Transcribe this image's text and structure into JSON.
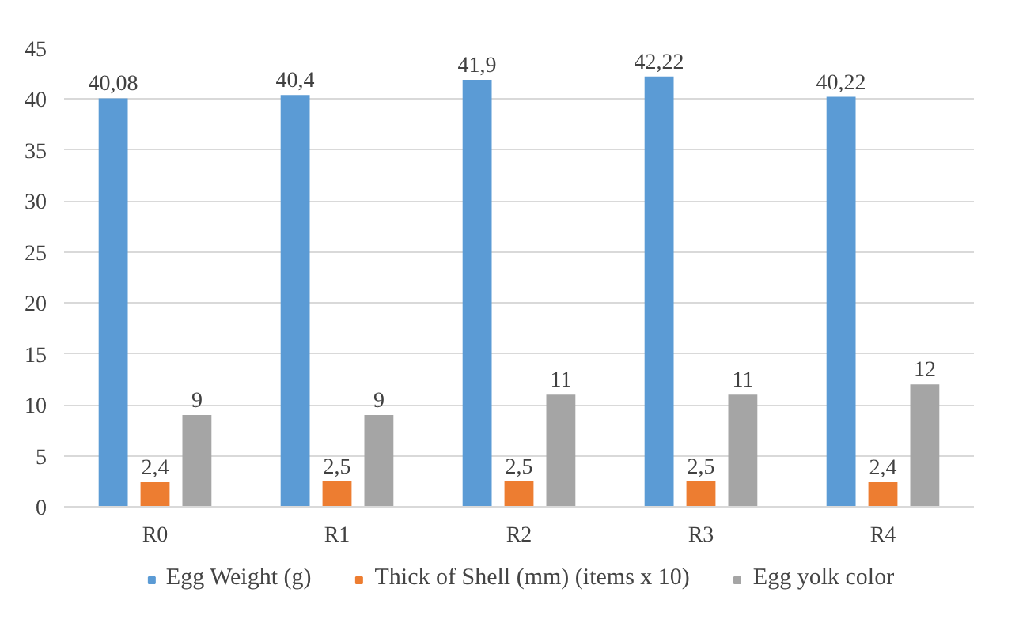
{
  "chart_data": {
    "type": "bar",
    "categories": [
      "R0",
      "R1",
      "R2",
      "R3",
      "R4"
    ],
    "series": [
      {
        "name": "Egg Weight (g)",
        "color": "#5b9bd5",
        "values": [
          40.08,
          40.4,
          41.9,
          42.22,
          40.22
        ],
        "value_labels": [
          "40,08",
          "40,4",
          "41,9",
          "42,22",
          "40,22"
        ]
      },
      {
        "name": "Thick of Shell (mm) (items x 10)",
        "color": "#ed7d31",
        "values": [
          2.4,
          2.5,
          2.5,
          2.5,
          2.4
        ],
        "value_labels": [
          "2,4",
          "2,5",
          "2,5",
          "2,5",
          "2,4"
        ]
      },
      {
        "name": "Egg yolk color",
        "color": "#a5a5a5",
        "values": [
          9,
          9,
          11,
          11,
          12
        ],
        "value_labels": [
          "9",
          "9",
          "11",
          "11",
          "12"
        ]
      }
    ],
    "ylim": [
      0,
      45
    ],
    "yticks": [
      0,
      5,
      10,
      15,
      20,
      25,
      30,
      35,
      40,
      45
    ],
    "grid": "y",
    "legend": "bottom"
  }
}
